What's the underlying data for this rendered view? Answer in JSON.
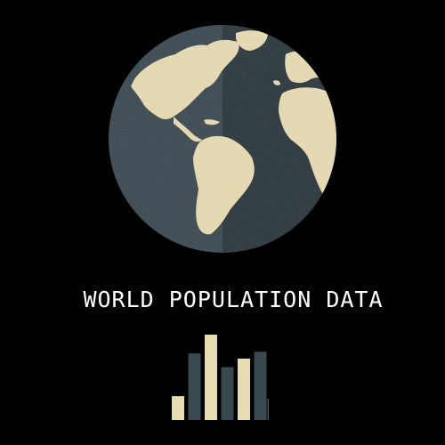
{
  "title": "WORLD POPULATION DATA",
  "colors": {
    "background": "#000000",
    "land": "#e8dcb2",
    "ocean_light": "#3a4850",
    "ocean_dark": "#2a363c",
    "bar_cream": "#e8dcb2",
    "bar_slate": "#3a4850",
    "text": "#ffffff"
  },
  "icons": {
    "globe": "globe-icon",
    "bar_graphic": "bar-chart-icon"
  },
  "bar_graphic": {
    "levels": [
      0.28,
      0.78,
      1.0,
      0.62,
      0.72,
      0.8
    ],
    "colors": [
      "cream",
      "slate",
      "cream",
      "slate",
      "cream",
      "slate"
    ]
  }
}
